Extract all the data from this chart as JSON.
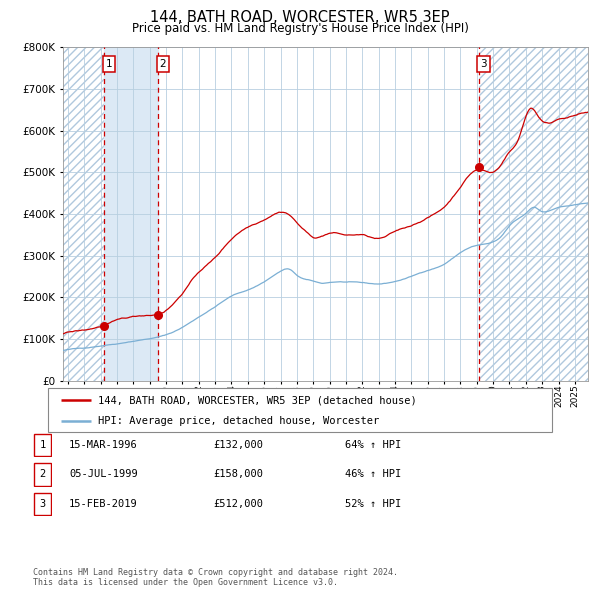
{
  "title": "144, BATH ROAD, WORCESTER, WR5 3EP",
  "subtitle": "Price paid vs. HM Land Registry's House Price Index (HPI)",
  "ylim": [
    0,
    800000
  ],
  "xlim_start": 1993.7,
  "xlim_end": 2025.8,
  "sale_dates": [
    1996.21,
    1999.51,
    2019.12
  ],
  "sale_prices": [
    132000,
    158000,
    512000
  ],
  "sale_labels": [
    "1",
    "2",
    "3"
  ],
  "vline_x": [
    1996.21,
    1999.51,
    2019.12
  ],
  "legend_line1": "144, BATH ROAD, WORCESTER, WR5 3EP (detached house)",
  "legend_line2": "HPI: Average price, detached house, Worcester",
  "table_rows": [
    [
      "1",
      "15-MAR-1996",
      "£132,000",
      "64% ↑ HPI"
    ],
    [
      "2",
      "05-JUL-1999",
      "£158,000",
      "46% ↑ HPI"
    ],
    [
      "3",
      "15-FEB-2019",
      "£512,000",
      "52% ↑ HPI"
    ]
  ],
  "footer": "Contains HM Land Registry data © Crown copyright and database right 2024.\nThis data is licensed under the Open Government Licence v3.0.",
  "red_color": "#cc0000",
  "blue_color": "#7bafd4",
  "bg_band_color": "#dce9f5",
  "grid_color": "#b8cfe0",
  "vline_color": "#cc0000",
  "hpi_years": [
    1993.7,
    1994,
    1995,
    1996,
    1997,
    1998,
    1999,
    2000,
    2001,
    2002,
    2003,
    2004,
    2005,
    2006,
    2007,
    2007.5,
    2008,
    2009,
    2009.5,
    2010,
    2011,
    2012,
    2013,
    2014,
    2015,
    2016,
    2017,
    2018,
    2019,
    2020,
    2020.5,
    2021,
    2022,
    2022.5,
    2023,
    2023.5,
    2024,
    2024.5,
    2025,
    2025.8
  ],
  "hpi_vals": [
    72000,
    74000,
    78000,
    84000,
    90000,
    97000,
    103000,
    112000,
    130000,
    155000,
    180000,
    205000,
    220000,
    240000,
    265000,
    270000,
    255000,
    240000,
    235000,
    237000,
    238000,
    235000,
    232000,
    238000,
    250000,
    265000,
    280000,
    308000,
    325000,
    332000,
    345000,
    370000,
    400000,
    415000,
    405000,
    408000,
    415000,
    418000,
    420000,
    425000
  ],
  "prop_years": [
    1993.7,
    1994,
    1995,
    1996.21,
    1997,
    1998,
    1999,
    1999.51,
    2001,
    2002,
    2003,
    2004,
    2005,
    2006,
    2007,
    2007.5,
    2008,
    2008.5,
    2009,
    2010,
    2011,
    2012,
    2013,
    2014,
    2015,
    2016,
    2017,
    2018,
    2019.12,
    2020,
    2020.5,
    2021,
    2021.5,
    2022,
    2022.3,
    2022.7,
    2023,
    2023.5,
    2024,
    2024.5,
    2025,
    2025.8
  ],
  "prop_vals": [
    112000,
    115000,
    120000,
    132000,
    142000,
    150000,
    155000,
    158000,
    210000,
    260000,
    295000,
    340000,
    370000,
    390000,
    410000,
    405000,
    385000,
    365000,
    350000,
    360000,
    355000,
    355000,
    345000,
    360000,
    375000,
    395000,
    420000,
    470000,
    512000,
    505000,
    525000,
    555000,
    580000,
    640000,
    660000,
    645000,
    630000,
    625000,
    635000,
    640000,
    645000,
    650000
  ]
}
